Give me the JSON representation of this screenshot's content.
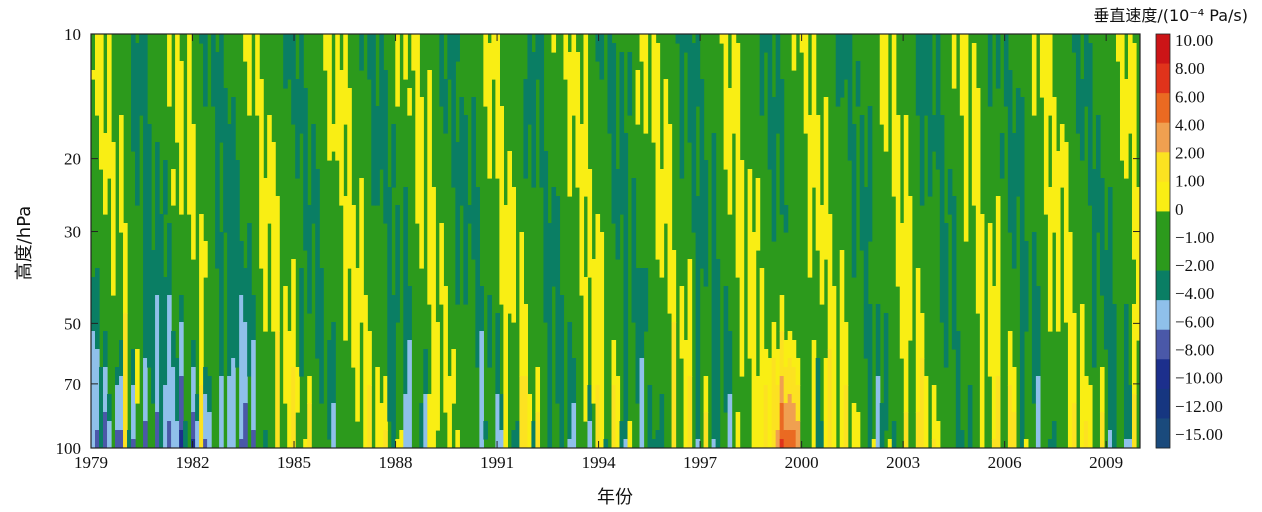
{
  "chart_data": {
    "type": "heatmap",
    "title": "",
    "xlabel": "年份",
    "ylabel": "高度/hPa",
    "y_scale": "log",
    "y_inverted": true,
    "xlim": [
      1979,
      2010
    ],
    "ylim": [
      100,
      10
    ],
    "x_ticks": [
      1979,
      1982,
      1985,
      1988,
      1991,
      1994,
      1997,
      2000,
      2003,
      2006,
      2009
    ],
    "x_tick_labels": [
      "1979",
      "1982",
      "1985",
      "1988",
      "1991",
      "1994",
      "1997",
      "2000",
      "2003",
      "2006",
      "2009"
    ],
    "y_ticks": [
      10,
      20,
      30,
      50,
      70,
      100
    ],
    "y_tick_labels": [
      "10",
      "20",
      "30",
      "50",
      "70",
      "100"
    ],
    "colorbar": {
      "title": "垂直速度/(10⁻⁴ Pa/s)",
      "levels": [
        "10.00",
        "8.00",
        "6.00",
        "4.00",
        "2.00",
        "1.00",
        "0",
        "−1.00",
        "−2.00",
        "−4.00",
        "−6.00",
        "−8.00",
        "−10.00",
        "−12.00",
        "−15.00"
      ],
      "colors": [
        "#cc1417",
        "#e0331b",
        "#ea6a22",
        "#f0a050",
        "#fce221",
        "#f9ee14",
        "#2c9a1c",
        "#2c9a1c",
        "#0a7e64",
        "#8fc0ea",
        "#4a58a8",
        "#1c2f8c",
        "#163680",
        "#1a4a7c"
      ]
    },
    "pattern_description": "Alternating bands of positive (yellow/orange) and negative (green) vertical velocity descending from 10 hPa to 100 hPa with a quasi-biennial period (~28 months); strongest negatives (blue) near 100 hPa in 1979–1983, strong positives (red) near 100 hPa around 1999–2000.",
    "qbo_period_years": 2.33,
    "qbo_phase_at_1979": 0.2,
    "phase_descent_years_10_to_100hPa": 1.2
  }
}
